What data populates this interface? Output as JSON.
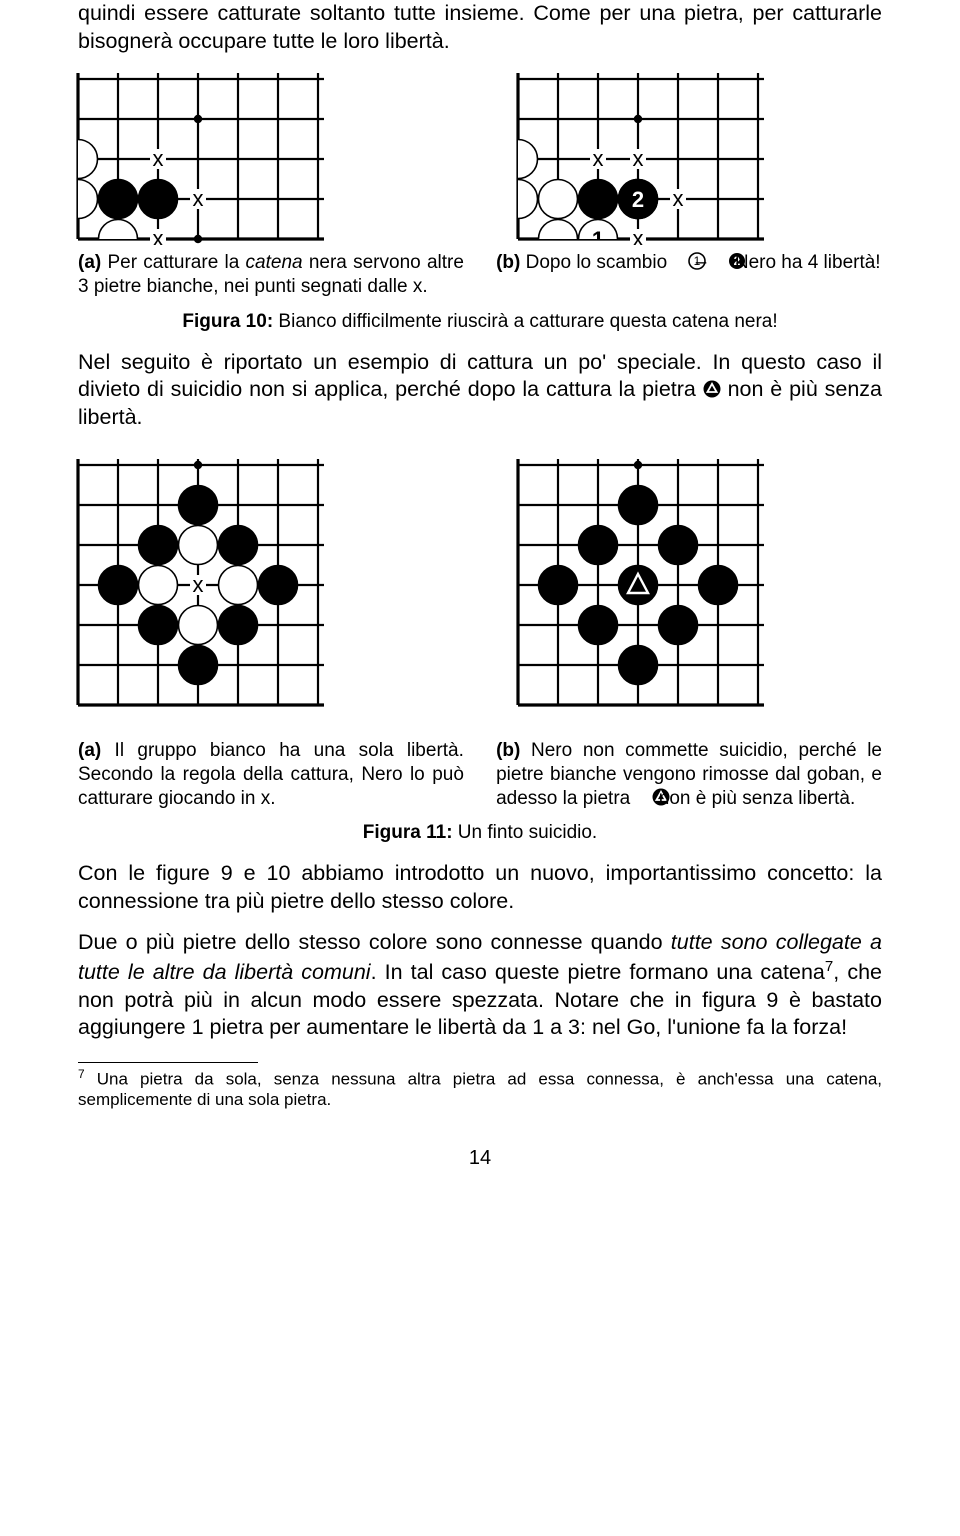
{
  "page_number": "14",
  "paragraphs": {
    "p1": "quindi essere catturate soltanto tutte insieme. Come per una pietra, per catturarle bisognerà occupare tutte le loro libertà.",
    "p2_pre": "Nel seguito è riportato un esempio di cattura un po' speciale. In questo caso il divieto di suicidio non si applica, perché dopo la cattura la pietra ",
    "p2_post": " non è più senza libertà.",
    "p3": "Con le figure 9 e 10 abbiamo introdotto un nuovo, importantissimo concetto: la connessione tra più pietre dello stesso colore.",
    "p4_a": "Due o più pietre dello stesso colore sono connesse quando ",
    "p4_b_it": "tutte sono collegate a tutte le altre da libertà comuni",
    "p4_c": ". In tal caso queste pietre formano una catena",
    "p4_d": ", che non potrà più in alcun modo essere spezzata. Notare che in figura 9 è bastato aggiungere 1 pietra per aumentare le libertà da 1 a 3: nel Go, l'unione fa la forza!"
  },
  "captions": {
    "fig10_a_pre": "(a)",
    "fig10_a_body1": " Per catturare la ",
    "fig10_a_it": "catena",
    "fig10_a_body2": " nera servono altre 3 pietre bianche, nei punti segnati dalle x.",
    "fig10_b_pre": "(b)",
    "fig10_b_body1": " Dopo lo scambio ",
    "fig10_b_body2": " – ",
    "fig10_b_body3": " Nero ha 4 libertà!",
    "fig10_label_b": "Figura 10:",
    "fig10_label_t": " Bianco difficilmente riuscirà a catturare questa catena nera!",
    "fig11_a_pre": "(a)",
    "fig11_a_body": " Il gruppo bianco ha una sola libertà. Secondo la regola della cattura, Nero lo può catturare giocando in x.",
    "fig11_b_pre": "(b)",
    "fig11_b_body_pre": " Nero non commette suicidio, perché le pietre bianche vengono rimosse dal goban, e adesso la pietra ",
    "fig11_b_body_post": " non è più senza libertà.",
    "fig11_label_b": "Figura 11:",
    "fig11_label_t": " Un finto suicidio."
  },
  "footnote": {
    "num": "7",
    "text": "Una pietra da sola, senza nessuna altra pietra ad essa connessa, è anch'essa una catena, semplicemente di una sola pietra."
  },
  "board_style": {
    "cell": 40,
    "line_color": "#000000",
    "line_width": 2.2,
    "outer_line_width": 3.2,
    "stone_radius": 19.5,
    "edge_stone_radius": 19.5,
    "stone_stroke": 1.6,
    "x_font": "22px",
    "num_font": "22px"
  },
  "fig10a": {
    "cols": 7,
    "rows": 5,
    "open_sides": [
      "top",
      "right"
    ],
    "white": [
      [
        0,
        2
      ],
      [
        0,
        3
      ],
      [
        1,
        4
      ]
    ],
    "black": [
      [
        1,
        3
      ],
      [
        2,
        3
      ]
    ],
    "hoshi": [
      [
        3,
        1
      ],
      [
        3,
        4
      ]
    ],
    "x_marks": [
      [
        2,
        2
      ],
      [
        3,
        3
      ],
      [
        2,
        4
      ]
    ]
  },
  "fig10b": {
    "cols": 7,
    "rows": 5,
    "open_sides": [
      "top",
      "right"
    ],
    "white": [
      [
        0,
        2
      ],
      [
        0,
        3
      ],
      [
        1,
        4
      ],
      [
        1,
        3
      ]
    ],
    "black": [
      [
        2,
        3
      ],
      [
        3,
        3
      ]
    ],
    "numbered_white": [
      [
        2,
        4,
        "1"
      ]
    ],
    "numbered_black": [
      [
        3,
        3,
        "2"
      ]
    ],
    "hoshi": [
      [
        3,
        1
      ]
    ],
    "x_marks": [
      [
        2,
        2
      ],
      [
        3,
        2
      ],
      [
        4,
        3
      ],
      [
        3,
        4
      ]
    ]
  },
  "fig11a": {
    "cols": 7,
    "rows": 7,
    "open_sides": [
      "top",
      "right"
    ],
    "white": [
      [
        2,
        3
      ],
      [
        3,
        2
      ],
      [
        3,
        4
      ],
      [
        4,
        3
      ]
    ],
    "black": [
      [
        1,
        3
      ],
      [
        2,
        2
      ],
      [
        2,
        4
      ],
      [
        3,
        1
      ],
      [
        3,
        5
      ],
      [
        4,
        2
      ],
      [
        4,
        4
      ],
      [
        5,
        3
      ]
    ],
    "hoshi": [
      [
        3,
        0
      ]
    ],
    "x_marks": [
      [
        3,
        3
      ]
    ]
  },
  "fig11b": {
    "cols": 7,
    "rows": 7,
    "open_sides": [
      "top",
      "right"
    ],
    "white": [],
    "black": [
      [
        1,
        3
      ],
      [
        2,
        2
      ],
      [
        2,
        4
      ],
      [
        3,
        1
      ],
      [
        3,
        5
      ],
      [
        4,
        2
      ],
      [
        4,
        4
      ],
      [
        5,
        3
      ]
    ],
    "triangle_black": [
      [
        3,
        3
      ]
    ],
    "hoshi": [
      [
        3,
        0
      ]
    ]
  }
}
